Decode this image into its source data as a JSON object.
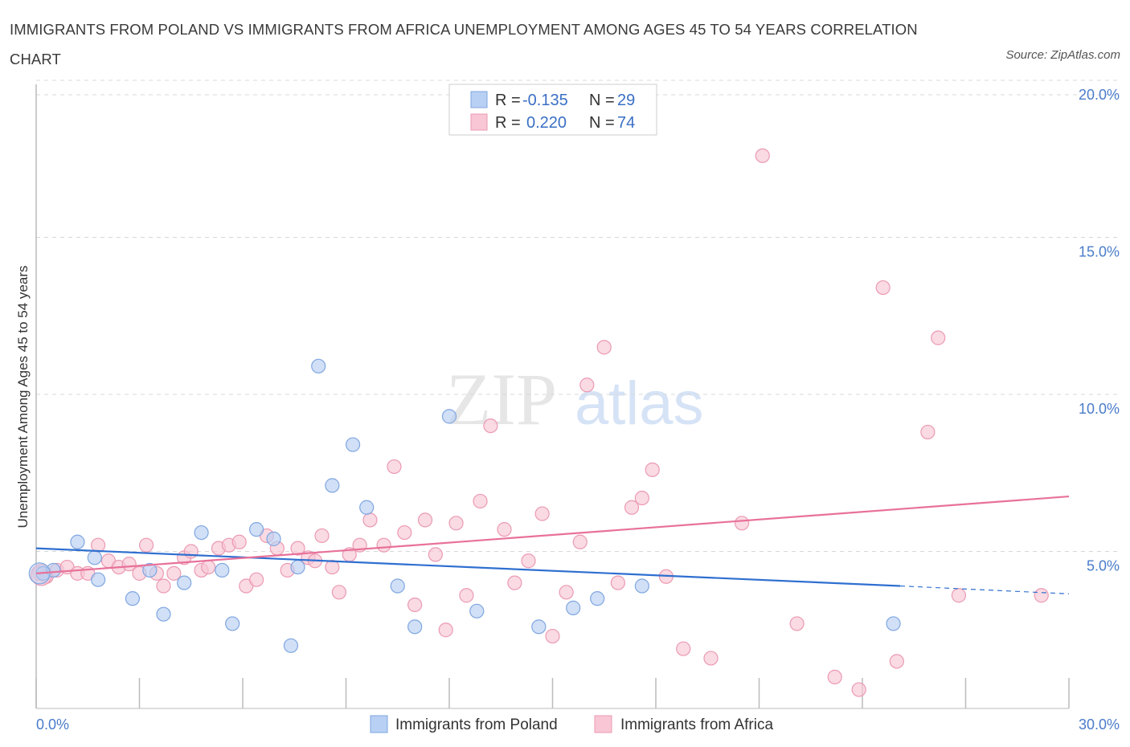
{
  "title": "IMMIGRANTS FROM POLAND VS IMMIGRANTS FROM AFRICA UNEMPLOYMENT AMONG AGES 45 TO 54 YEARS CORRELATION CHART",
  "source": "Source: ZipAtlas.com",
  "watermark": {
    "zip": "ZIP",
    "atlas": "atlas"
  },
  "legend": {
    "poland": {
      "r_label": "R =",
      "r_value": "-0.135",
      "n_label": "N =",
      "n_value": "29"
    },
    "africa": {
      "r_label": "R =",
      "r_value": "0.220",
      "n_label": "N =",
      "n_value": "74"
    }
  },
  "colors": {
    "poland_fill": "#b8d0f3",
    "poland_stroke": "#7fa6e0",
    "poland_line": "#2f6fd0",
    "africa_fill": "#f8c6d4",
    "africa_stroke": "#eb9ab3",
    "africa_line": "#e8719a",
    "tick_text": "#4a7cc9",
    "grid": "#d8d8d8"
  },
  "chart_data": {
    "type": "scatter",
    "title": "IMMIGRANTS FROM POLAND VS IMMIGRANTS FROM AFRICA UNEMPLOYMENT AMONG AGES 45 TO 54 YEARS CORRELATION CHART",
    "xlabel": "",
    "ylabel": "Unemployment Among Ages 45 to 54 years",
    "xlim": [
      0,
      30
    ],
    "ylim": [
      0,
      20
    ],
    "x_tick_labels": [
      "0.0%",
      "30.0%"
    ],
    "y_ticks": [
      5,
      10,
      15,
      20
    ],
    "y_tick_labels": [
      "5.0%",
      "10.0%",
      "15.0%",
      "20.0%"
    ],
    "grid": true,
    "legend_placement": "top-center",
    "series": [
      {
        "name": "Immigrants from Poland",
        "R": -0.135,
        "N": 29,
        "trend": {
          "x0": 0,
          "y0": 5.1,
          "x1": 25.1,
          "y1": 3.9,
          "dashed_to_x": 30,
          "dashed_to_y": 3.65
        },
        "points": [
          [
            0.2,
            4.3
          ],
          [
            0.5,
            4.4
          ],
          [
            1.2,
            5.3
          ],
          [
            1.7,
            4.8
          ],
          [
            1.8,
            4.1
          ],
          [
            2.8,
            3.5
          ],
          [
            3.3,
            4.4
          ],
          [
            3.7,
            3.0
          ],
          [
            4.3,
            4.0
          ],
          [
            4.8,
            5.6
          ],
          [
            5.4,
            4.4
          ],
          [
            5.7,
            2.7
          ],
          [
            6.4,
            5.7
          ],
          [
            6.9,
            5.4
          ],
          [
            7.4,
            2.0
          ],
          [
            7.6,
            4.5
          ],
          [
            8.2,
            10.9
          ],
          [
            8.6,
            7.1
          ],
          [
            9.2,
            8.4
          ],
          [
            9.6,
            6.4
          ],
          [
            10.5,
            3.9
          ],
          [
            11.0,
            2.6
          ],
          [
            12.0,
            9.3
          ],
          [
            12.8,
            3.1
          ],
          [
            14.6,
            2.6
          ],
          [
            15.6,
            3.2
          ],
          [
            16.3,
            3.5
          ],
          [
            17.6,
            3.9
          ],
          [
            24.9,
            2.7
          ]
        ]
      },
      {
        "name": "Immigrants from Africa",
        "R": 0.22,
        "N": 74,
        "trend": {
          "x0": 0,
          "y0": 4.3,
          "x1": 30,
          "y1": 6.75
        },
        "points": [
          [
            0.1,
            4.3
          ],
          [
            0.3,
            4.2
          ],
          [
            0.6,
            4.4
          ],
          [
            0.9,
            4.5
          ],
          [
            1.2,
            4.3
          ],
          [
            1.5,
            4.3
          ],
          [
            1.8,
            5.2
          ],
          [
            2.1,
            4.7
          ],
          [
            2.4,
            4.5
          ],
          [
            2.7,
            4.6
          ],
          [
            3.0,
            4.3
          ],
          [
            3.2,
            5.2
          ],
          [
            3.5,
            4.3
          ],
          [
            3.7,
            3.9
          ],
          [
            4.0,
            4.3
          ],
          [
            4.3,
            4.8
          ],
          [
            4.5,
            5.0
          ],
          [
            4.8,
            4.4
          ],
          [
            5.0,
            4.5
          ],
          [
            5.3,
            5.1
          ],
          [
            5.6,
            5.2
          ],
          [
            5.9,
            5.3
          ],
          [
            6.1,
            3.9
          ],
          [
            6.4,
            4.1
          ],
          [
            6.7,
            5.5
          ],
          [
            7.0,
            5.1
          ],
          [
            7.3,
            4.4
          ],
          [
            7.6,
            5.1
          ],
          [
            7.9,
            4.8
          ],
          [
            8.1,
            4.7
          ],
          [
            8.3,
            5.5
          ],
          [
            8.6,
            4.5
          ],
          [
            8.8,
            3.7
          ],
          [
            9.1,
            4.9
          ],
          [
            9.4,
            5.2
          ],
          [
            9.7,
            6.0
          ],
          [
            10.1,
            5.2
          ],
          [
            10.4,
            7.7
          ],
          [
            10.7,
            5.6
          ],
          [
            11.0,
            3.3
          ],
          [
            11.3,
            6.0
          ],
          [
            11.6,
            4.9
          ],
          [
            11.9,
            2.5
          ],
          [
            12.2,
            5.9
          ],
          [
            12.5,
            3.6
          ],
          [
            12.9,
            6.6
          ],
          [
            13.2,
            9.0
          ],
          [
            13.6,
            5.7
          ],
          [
            13.9,
            4.0
          ],
          [
            14.3,
            4.7
          ],
          [
            14.7,
            6.2
          ],
          [
            15.0,
            2.3
          ],
          [
            15.4,
            3.7
          ],
          [
            15.8,
            5.3
          ],
          [
            16.0,
            10.3
          ],
          [
            16.5,
            11.5
          ],
          [
            16.9,
            4.0
          ],
          [
            17.3,
            6.4
          ],
          [
            17.6,
            6.7
          ],
          [
            17.9,
            7.6
          ],
          [
            18.3,
            4.2
          ],
          [
            18.8,
            1.9
          ],
          [
            19.6,
            1.6
          ],
          [
            20.5,
            5.9
          ],
          [
            21.1,
            17.6
          ],
          [
            22.1,
            2.7
          ],
          [
            23.2,
            1.0
          ],
          [
            23.9,
            0.6
          ],
          [
            24.6,
            13.4
          ],
          [
            25.0,
            1.5
          ],
          [
            25.9,
            8.8
          ],
          [
            26.2,
            11.8
          ],
          [
            26.8,
            3.6
          ],
          [
            29.2,
            3.6
          ]
        ]
      }
    ]
  },
  "ylabel": "Unemployment Among Ages 45 to 54 years"
}
